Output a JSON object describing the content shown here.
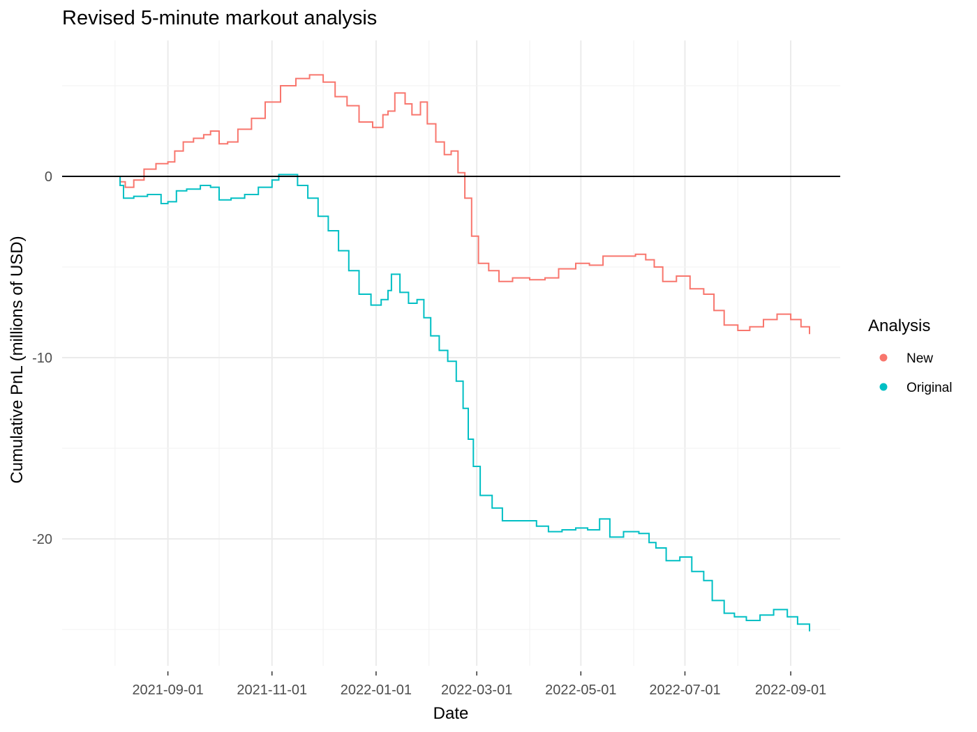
{
  "chart_data": {
    "type": "line",
    "title": "Revised 5-minute markout analysis",
    "xlabel": "Date",
    "ylabel": "Cumulative PnL (millions of USD)",
    "x_tick_labels": [
      "2021-09-01",
      "2021-11-01",
      "2022-01-01",
      "2022-03-01",
      "2022-05-01",
      "2022-07-01",
      "2022-09-01"
    ],
    "y_ticks": [
      0,
      -10,
      -20
    ],
    "y_tick_labels": [
      "0",
      "-10",
      "-20"
    ],
    "xlim": [
      "2021-07-01",
      "2022-09-30"
    ],
    "ylim": [
      -27,
      7.5
    ],
    "reference_line_y": 0,
    "grid": true,
    "legend": {
      "title": "Analysis",
      "position": "right"
    },
    "series": [
      {
        "name": "New",
        "color": "#F8766D",
        "points": [
          [
            "2021-08-01",
            0.0
          ],
          [
            "2021-08-04",
            -0.3
          ],
          [
            "2021-08-07",
            -0.6
          ],
          [
            "2021-08-12",
            -0.2
          ],
          [
            "2021-08-18",
            0.4
          ],
          [
            "2021-08-25",
            0.7
          ],
          [
            "2021-09-01",
            0.8
          ],
          [
            "2021-09-05",
            1.4
          ],
          [
            "2021-09-10",
            1.9
          ],
          [
            "2021-09-16",
            2.1
          ],
          [
            "2021-09-22",
            2.3
          ],
          [
            "2021-09-26",
            2.5
          ],
          [
            "2021-10-01",
            1.8
          ],
          [
            "2021-10-06",
            1.9
          ],
          [
            "2021-10-12",
            2.6
          ],
          [
            "2021-10-20",
            3.2
          ],
          [
            "2021-10-28",
            4.1
          ],
          [
            "2021-11-06",
            5.0
          ],
          [
            "2021-11-15",
            5.4
          ],
          [
            "2021-11-23",
            5.6
          ],
          [
            "2021-12-01",
            5.2
          ],
          [
            "2021-12-08",
            4.4
          ],
          [
            "2021-12-15",
            3.9
          ],
          [
            "2021-12-22",
            3.0
          ],
          [
            "2021-12-30",
            2.7
          ],
          [
            "2022-01-05",
            3.4
          ],
          [
            "2022-01-08",
            3.6
          ],
          [
            "2022-01-12",
            4.6
          ],
          [
            "2022-01-18",
            4.0
          ],
          [
            "2022-01-22",
            3.4
          ],
          [
            "2022-01-27",
            4.1
          ],
          [
            "2022-01-31",
            2.9
          ],
          [
            "2022-02-05",
            1.9
          ],
          [
            "2022-02-10",
            1.2
          ],
          [
            "2022-02-14",
            1.4
          ],
          [
            "2022-02-18",
            0.2
          ],
          [
            "2022-02-22",
            -1.2
          ],
          [
            "2022-02-26",
            -3.3
          ],
          [
            "2022-03-02",
            -4.8
          ],
          [
            "2022-03-08",
            -5.2
          ],
          [
            "2022-03-14",
            -5.8
          ],
          [
            "2022-03-22",
            -5.6
          ],
          [
            "2022-04-01",
            -5.7
          ],
          [
            "2022-04-10",
            -5.6
          ],
          [
            "2022-04-18",
            -5.1
          ],
          [
            "2022-04-28",
            -4.8
          ],
          [
            "2022-05-06",
            -4.9
          ],
          [
            "2022-05-14",
            -4.4
          ],
          [
            "2022-05-24",
            -4.4
          ],
          [
            "2022-06-02",
            -4.3
          ],
          [
            "2022-06-08",
            -4.6
          ],
          [
            "2022-06-13",
            -5.0
          ],
          [
            "2022-06-18",
            -5.8
          ],
          [
            "2022-06-26",
            -5.5
          ],
          [
            "2022-07-04",
            -6.2
          ],
          [
            "2022-07-12",
            -6.5
          ],
          [
            "2022-07-18",
            -7.4
          ],
          [
            "2022-07-24",
            -8.2
          ],
          [
            "2022-08-01",
            -8.5
          ],
          [
            "2022-08-08",
            -8.3
          ],
          [
            "2022-08-16",
            -7.9
          ],
          [
            "2022-08-24",
            -7.6
          ],
          [
            "2022-09-01",
            -7.9
          ],
          [
            "2022-09-07",
            -8.3
          ],
          [
            "2022-09-12",
            -8.7
          ]
        ]
      },
      {
        "name": "Original",
        "color": "#00BFC4",
        "points": [
          [
            "2021-08-01",
            0.0
          ],
          [
            "2021-08-04",
            -0.5
          ],
          [
            "2021-08-06",
            -1.2
          ],
          [
            "2021-08-12",
            -1.1
          ],
          [
            "2021-08-20",
            -1.0
          ],
          [
            "2021-08-28",
            -1.5
          ],
          [
            "2021-09-01",
            -1.4
          ],
          [
            "2021-09-06",
            -0.8
          ],
          [
            "2021-09-12",
            -0.7
          ],
          [
            "2021-09-20",
            -0.5
          ],
          [
            "2021-09-26",
            -0.6
          ],
          [
            "2021-10-01",
            -1.3
          ],
          [
            "2021-10-08",
            -1.2
          ],
          [
            "2021-10-16",
            -1.0
          ],
          [
            "2021-10-24",
            -0.6
          ],
          [
            "2021-11-01",
            -0.2
          ],
          [
            "2021-11-05",
            0.1
          ],
          [
            "2021-11-10",
            0.1
          ],
          [
            "2021-11-16",
            -0.5
          ],
          [
            "2021-11-22",
            -1.2
          ],
          [
            "2021-11-28",
            -2.2
          ],
          [
            "2021-12-04",
            -3.0
          ],
          [
            "2021-12-10",
            -4.1
          ],
          [
            "2021-12-16",
            -5.2
          ],
          [
            "2021-12-22",
            -6.5
          ],
          [
            "2021-12-29",
            -7.1
          ],
          [
            "2022-01-04",
            -6.8
          ],
          [
            "2022-01-08",
            -6.3
          ],
          [
            "2022-01-10",
            -5.4
          ],
          [
            "2022-01-15",
            -6.4
          ],
          [
            "2022-01-20",
            -7.0
          ],
          [
            "2022-01-25",
            -6.8
          ],
          [
            "2022-01-29",
            -7.8
          ],
          [
            "2022-02-02",
            -8.8
          ],
          [
            "2022-02-07",
            -9.6
          ],
          [
            "2022-02-12",
            -10.2
          ],
          [
            "2022-02-17",
            -11.3
          ],
          [
            "2022-02-21",
            -12.8
          ],
          [
            "2022-02-24",
            -14.5
          ],
          [
            "2022-02-27",
            -16.0
          ],
          [
            "2022-03-03",
            -17.6
          ],
          [
            "2022-03-10",
            -18.3
          ],
          [
            "2022-03-16",
            -19.0
          ],
          [
            "2022-03-26",
            -19.0
          ],
          [
            "2022-04-05",
            -19.3
          ],
          [
            "2022-04-12",
            -19.6
          ],
          [
            "2022-04-20",
            -19.5
          ],
          [
            "2022-04-28",
            -19.4
          ],
          [
            "2022-05-05",
            -19.5
          ],
          [
            "2022-05-12",
            -18.9
          ],
          [
            "2022-05-18",
            -19.9
          ],
          [
            "2022-05-26",
            -19.6
          ],
          [
            "2022-06-04",
            -19.7
          ],
          [
            "2022-06-10",
            -20.2
          ],
          [
            "2022-06-14",
            -20.5
          ],
          [
            "2022-06-20",
            -21.2
          ],
          [
            "2022-06-28",
            -21.0
          ],
          [
            "2022-07-05",
            -21.8
          ],
          [
            "2022-07-12",
            -22.3
          ],
          [
            "2022-07-17",
            -23.4
          ],
          [
            "2022-07-24",
            -24.1
          ],
          [
            "2022-07-30",
            -24.3
          ],
          [
            "2022-08-06",
            -24.5
          ],
          [
            "2022-08-14",
            -24.2
          ],
          [
            "2022-08-22",
            -23.9
          ],
          [
            "2022-08-30",
            -24.3
          ],
          [
            "2022-09-05",
            -24.7
          ],
          [
            "2022-09-12",
            -25.1
          ]
        ]
      }
    ]
  }
}
